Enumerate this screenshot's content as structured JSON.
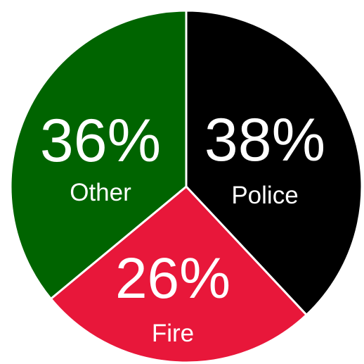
{
  "chart_data": {
    "type": "pie",
    "slices": [
      {
        "label": "Police",
        "value": 38,
        "value_label": "38%",
        "color": "#000000"
      },
      {
        "label": "Fire",
        "value": 26,
        "value_label": "26%",
        "color": "#e8173a"
      },
      {
        "label": "Other",
        "value": 36,
        "value_label": "36%",
        "color": "#006400"
      }
    ],
    "start": "12 o'clock",
    "direction": "clockwise",
    "slice_border_color": "#ffffff",
    "legend": "none"
  }
}
